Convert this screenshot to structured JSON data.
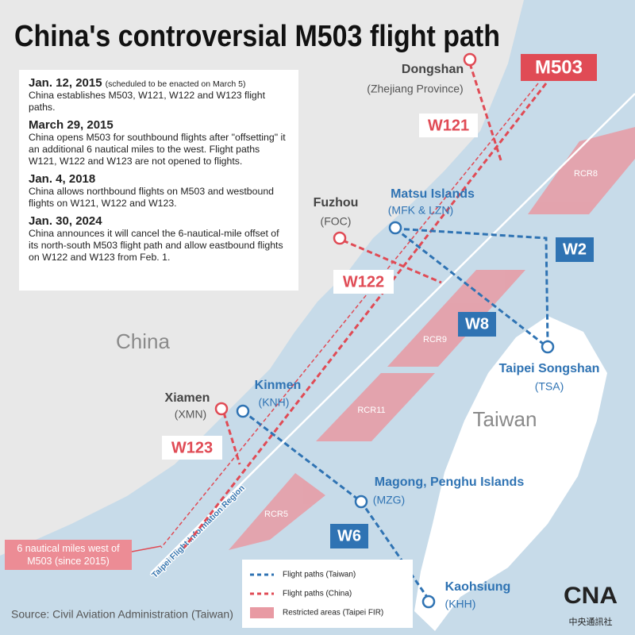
{
  "title": "China's controversial M503 flight path",
  "timeline": [
    {
      "date": "Jan. 12, 2015",
      "note": "(scheduled to be enacted on March 5)",
      "text": "China establishes M503, W121, W122 and W123 flight paths."
    },
    {
      "date": "March 29, 2015",
      "text": "China opens M503 for southbound flights after \"offsetting\" it an additional 6 nautical miles to the west. Flight paths W121, W122 and W123 are not opened to flights."
    },
    {
      "date": "Jan. 4, 2018",
      "text": "China allows northbound flights on M503 and westbound flights on W121, W122 and W123."
    },
    {
      "date": "Jan. 30, 2024",
      "text": "China announces it will cancel the 6-nautical-mile offset of its north-south M503 flight path and allow eastbound flights on W122 and W123 from Feb. 1."
    }
  ],
  "map": {
    "region": "China",
    "island": "Taiwan",
    "fir": "Taipei Flight Information Region",
    "offset_note": "6 nautical miles west of M503 (since 2015)",
    "airports": [
      {
        "name": "Dongshan",
        "code": "(Zhejiang Province)"
      },
      {
        "name": "Fuzhou",
        "code": "(FOC)"
      },
      {
        "name": "Xiamen",
        "code": "(XMN)"
      },
      {
        "name": "Matsu Islands",
        "code": "(MFK & LZN)"
      },
      {
        "name": "Taipei Songshan",
        "code": "(TSA)"
      },
      {
        "name": "Kinmen",
        "code": "(KNH)"
      },
      {
        "name": "Magong, Penghu Islands",
        "code": "(MZG)"
      },
      {
        "name": "Kaohsiung",
        "code": "(KHH)"
      }
    ],
    "china_routes": [
      "M503",
      "W121",
      "W122",
      "W123"
    ],
    "taiwan_routes": [
      "W2",
      "W8",
      "W6"
    ],
    "restricted": [
      "RCR8",
      "RCR9",
      "RCR11",
      "RCR5"
    ]
  },
  "legend": [
    "Flight paths (Taiwan)",
    "Flight paths (China)",
    "Restricted areas (Taipei FIR)"
  ],
  "source": "Source: Civil Aviation Administration (Taiwan)",
  "logo": {
    "mark": "CNA",
    "text": "中央通訊社"
  }
}
